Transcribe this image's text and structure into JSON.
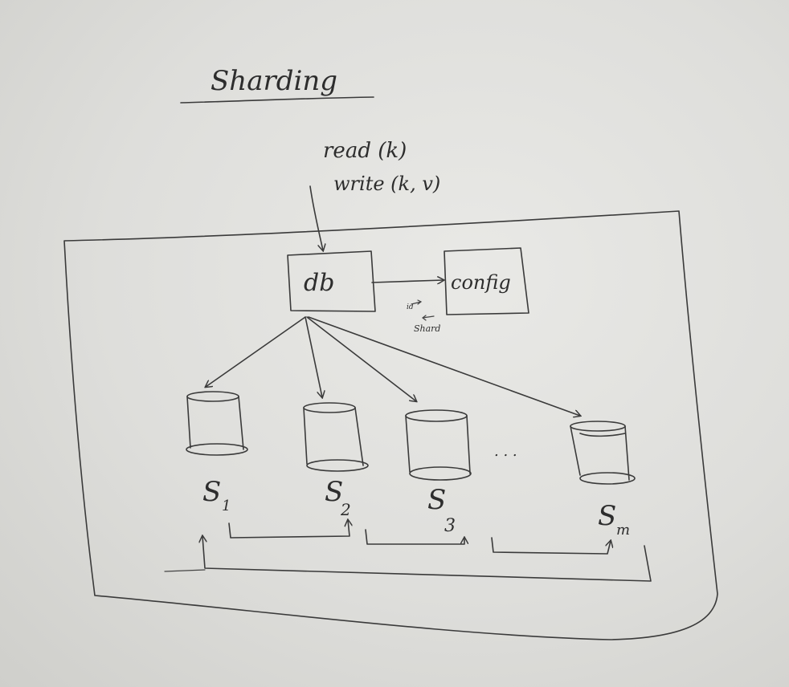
{
  "title": "Sharding",
  "request": {
    "read": "read (k)",
    "write": "write (k, v)"
  },
  "nodes": {
    "db": "db",
    "config": "config"
  },
  "annotation": {
    "id": "id",
    "shard": "Shard"
  },
  "shards": [
    "S",
    "S",
    "S",
    "S"
  ],
  "shard_subscripts": [
    "1",
    "2",
    "3",
    "m"
  ],
  "ellipsis": ". . ."
}
